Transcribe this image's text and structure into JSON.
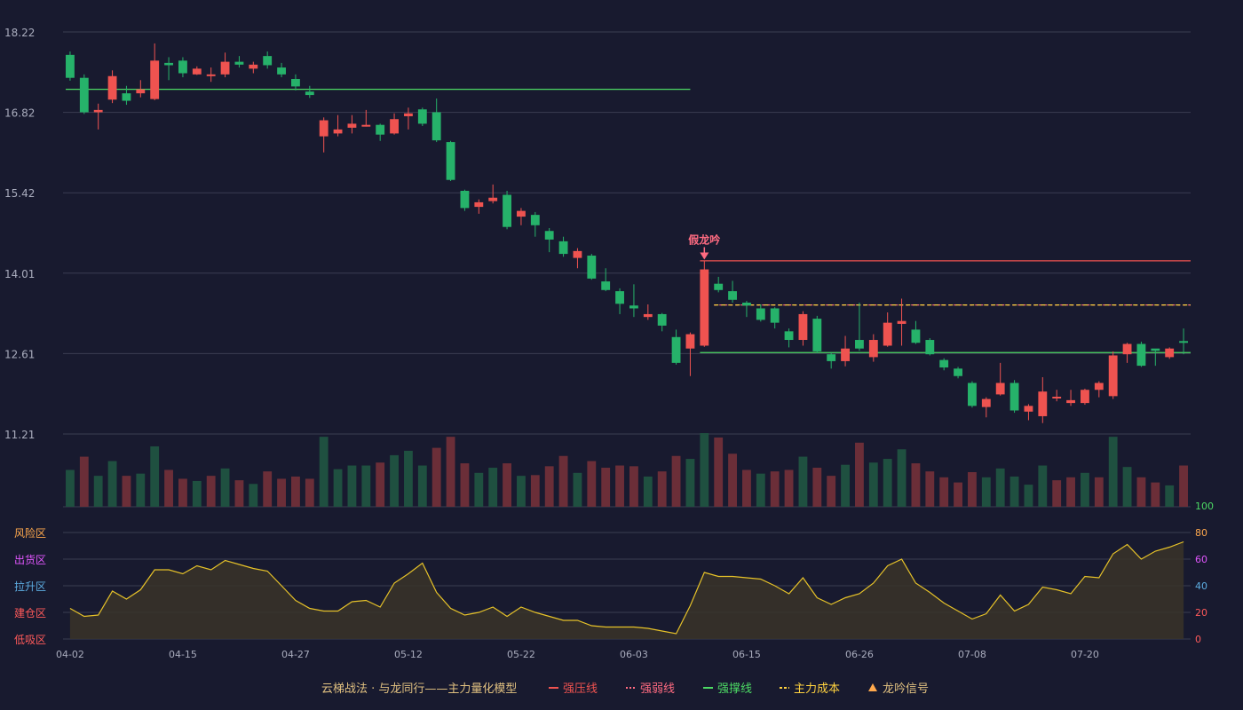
{
  "colors": {
    "background": "#181a2f",
    "grid": "#3a3d52",
    "axis_text": "#a9acbd",
    "up": "#ef5350",
    "down": "#26b26a",
    "vol_up": "#6b2e38",
    "vol_down": "#1f5040",
    "resistance": "#ef5350",
    "weak": "#ff6b81",
    "support": "#4cd964",
    "cost": "#ffd23f",
    "signal": "#ffa94d",
    "indicator_line": "#e6c229",
    "indicator_fill": "#3a3428"
  },
  "chart_data": {
    "type": "candlestick",
    "title": "",
    "price_axis": {
      "ticks": [
        "18.22",
        "16.82",
        "15.42",
        "14.01",
        "12.61",
        "11.21"
      ],
      "ylim": [
        11.21,
        18.22
      ]
    },
    "x_tick_labels": [
      {
        "date": "04-02",
        "index": 0
      },
      {
        "date": "04-15",
        "index": 8
      },
      {
        "date": "04-27",
        "index": 16
      },
      {
        "date": "05-12",
        "index": 24
      },
      {
        "date": "05-22",
        "index": 32
      },
      {
        "date": "06-03",
        "index": 40
      },
      {
        "date": "06-15",
        "index": 48
      },
      {
        "date": "06-26",
        "index": 56
      },
      {
        "date": "07-08",
        "index": 64
      },
      {
        "date": "07-20",
        "index": 72
      }
    ],
    "candles": [
      [
        17.82,
        17.42,
        17.88,
        17.37
      ],
      [
        17.42,
        16.82,
        17.48,
        16.79
      ],
      [
        16.82,
        16.86,
        16.97,
        16.52
      ],
      [
        17.04,
        17.45,
        17.55,
        16.98
      ],
      [
        17.15,
        17.02,
        17.28,
        16.95
      ],
      [
        17.15,
        17.22,
        17.38,
        17.08
      ],
      [
        17.05,
        17.72,
        18.02,
        17.03
      ],
      [
        17.68,
        17.64,
        17.78,
        17.38
      ],
      [
        17.72,
        17.5,
        17.78,
        17.43
      ],
      [
        17.48,
        17.58,
        17.62,
        17.47
      ],
      [
        17.45,
        17.48,
        17.6,
        17.35
      ],
      [
        17.48,
        17.7,
        17.86,
        17.43
      ],
      [
        17.7,
        17.65,
        17.8,
        17.6
      ],
      [
        17.58,
        17.65,
        17.7,
        17.5
      ],
      [
        17.8,
        17.64,
        17.88,
        17.58
      ],
      [
        17.6,
        17.48,
        17.68,
        17.43
      ],
      [
        17.4,
        17.27,
        17.48,
        17.2
      ],
      [
        17.18,
        17.12,
        17.28,
        17.07
      ],
      [
        16.4,
        16.68,
        16.73,
        16.12
      ],
      [
        16.45,
        16.52,
        16.77,
        16.4
      ],
      [
        16.55,
        16.62,
        16.77,
        16.45
      ],
      [
        16.57,
        16.6,
        16.86,
        16.57
      ],
      [
        16.6,
        16.43,
        16.62,
        16.32
      ],
      [
        16.45,
        16.7,
        16.8,
        16.43
      ],
      [
        16.75,
        16.8,
        16.9,
        16.52
      ],
      [
        16.87,
        16.62,
        16.9,
        16.58
      ],
      [
        16.82,
        16.33,
        17.06,
        16.3
      ],
      [
        16.3,
        15.64,
        16.32,
        15.62
      ],
      [
        15.45,
        15.15,
        15.47,
        15.1
      ],
      [
        15.17,
        15.25,
        15.3,
        15.05
      ],
      [
        15.27,
        15.33,
        15.56,
        15.23
      ],
      [
        15.38,
        14.82,
        15.45,
        14.78
      ],
      [
        15.0,
        15.1,
        15.15,
        14.85
      ],
      [
        15.03,
        14.85,
        15.08,
        14.65
      ],
      [
        14.75,
        14.6,
        14.8,
        14.38
      ],
      [
        14.57,
        14.35,
        14.65,
        14.3
      ],
      [
        14.28,
        14.4,
        14.45,
        14.1
      ],
      [
        14.32,
        13.92,
        14.35,
        13.9
      ],
      [
        13.87,
        13.72,
        14.1,
        13.7
      ],
      [
        13.7,
        13.48,
        13.75,
        13.3
      ],
      [
        13.45,
        13.4,
        13.82,
        13.25
      ],
      [
        13.25,
        13.3,
        13.47,
        13.2
      ],
      [
        13.3,
        13.1,
        13.32,
        13.0
      ],
      [
        12.9,
        12.45,
        13.03,
        12.42
      ],
      [
        12.7,
        12.95,
        12.98,
        12.22
      ],
      [
        12.75,
        14.08,
        14.22,
        12.73
      ],
      [
        13.83,
        13.72,
        13.95,
        13.68
      ],
      [
        13.7,
        13.55,
        13.88,
        13.5
      ],
      [
        13.5,
        13.45,
        13.53,
        13.25
      ],
      [
        13.4,
        13.2,
        13.47,
        13.17
      ],
      [
        13.4,
        13.15,
        13.42,
        13.05
      ],
      [
        13.0,
        12.85,
        13.05,
        12.72
      ],
      [
        12.85,
        13.3,
        13.35,
        12.75
      ],
      [
        13.22,
        12.65,
        13.27,
        12.62
      ],
      [
        12.6,
        12.48,
        12.63,
        12.35
      ],
      [
        12.48,
        12.7,
        12.92,
        12.39
      ],
      [
        12.85,
        12.7,
        13.5,
        12.66
      ],
      [
        12.55,
        12.85,
        12.95,
        12.47
      ],
      [
        12.75,
        13.15,
        13.33,
        12.73
      ],
      [
        13.13,
        13.18,
        13.57,
        12.75
      ],
      [
        13.03,
        12.8,
        13.18,
        12.78
      ],
      [
        12.85,
        12.6,
        12.88,
        12.58
      ],
      [
        12.5,
        12.37,
        12.53,
        12.32
      ],
      [
        12.35,
        12.22,
        12.38,
        12.18
      ],
      [
        12.1,
        11.7,
        12.13,
        11.67
      ],
      [
        11.68,
        11.82,
        11.85,
        11.5
      ],
      [
        11.9,
        12.1,
        12.45,
        11.88
      ],
      [
        12.1,
        11.62,
        12.15,
        11.58
      ],
      [
        11.6,
        11.7,
        11.73,
        11.45
      ],
      [
        11.52,
        11.95,
        12.2,
        11.4
      ],
      [
        11.85,
        11.86,
        11.98,
        11.78
      ],
      [
        11.75,
        11.8,
        11.98,
        11.7
      ],
      [
        11.75,
        11.98,
        12.0,
        11.72
      ],
      [
        11.98,
        12.1,
        12.13,
        11.85
      ],
      [
        11.87,
        12.58,
        12.65,
        11.82
      ],
      [
        12.6,
        12.78,
        12.8,
        12.45
      ],
      [
        12.78,
        12.4,
        12.82,
        12.38
      ],
      [
        12.7,
        12.66,
        12.69,
        12.4
      ],
      [
        12.55,
        12.7,
        12.72,
        12.52
      ],
      [
        12.83,
        12.8,
        13.05,
        12.6
      ]
    ],
    "volume": [
      [
        0.5,
        "d"
      ],
      [
        0.68,
        "u"
      ],
      [
        0.42,
        "d"
      ],
      [
        0.62,
        "d"
      ],
      [
        0.42,
        "u"
      ],
      [
        0.45,
        "d"
      ],
      [
        0.82,
        "d"
      ],
      [
        0.5,
        "u"
      ],
      [
        0.38,
        "u"
      ],
      [
        0.35,
        "d"
      ],
      [
        0.42,
        "u"
      ],
      [
        0.52,
        "d"
      ],
      [
        0.36,
        "u"
      ],
      [
        0.31,
        "d"
      ],
      [
        0.48,
        "u"
      ],
      [
        0.38,
        "u"
      ],
      [
        0.41,
        "u"
      ],
      [
        0.38,
        "u"
      ],
      [
        0.95,
        "d"
      ],
      [
        0.51,
        "d"
      ],
      [
        0.56,
        "d"
      ],
      [
        0.56,
        "d"
      ],
      [
        0.6,
        "u"
      ],
      [
        0.7,
        "d"
      ],
      [
        0.76,
        "d"
      ],
      [
        0.56,
        "d"
      ],
      [
        0.8,
        "u"
      ],
      [
        0.95,
        "u"
      ],
      [
        0.59,
        "u"
      ],
      [
        0.46,
        "d"
      ],
      [
        0.53,
        "d"
      ],
      [
        0.59,
        "u"
      ],
      [
        0.42,
        "d"
      ],
      [
        0.43,
        "u"
      ],
      [
        0.55,
        "u"
      ],
      [
        0.69,
        "u"
      ],
      [
        0.46,
        "d"
      ],
      [
        0.62,
        "u"
      ],
      [
        0.53,
        "u"
      ],
      [
        0.56,
        "u"
      ],
      [
        0.55,
        "u"
      ],
      [
        0.41,
        "d"
      ],
      [
        0.48,
        "u"
      ],
      [
        0.69,
        "u"
      ],
      [
        0.65,
        "d"
      ],
      [
        1.0,
        "d"
      ],
      [
        0.94,
        "u"
      ],
      [
        0.72,
        "u"
      ],
      [
        0.5,
        "u"
      ],
      [
        0.45,
        "d"
      ],
      [
        0.48,
        "u"
      ],
      [
        0.5,
        "u"
      ],
      [
        0.68,
        "d"
      ],
      [
        0.53,
        "u"
      ],
      [
        0.42,
        "u"
      ],
      [
        0.57,
        "d"
      ],
      [
        0.87,
        "u"
      ],
      [
        0.6,
        "d"
      ],
      [
        0.65,
        "d"
      ],
      [
        0.78,
        "d"
      ],
      [
        0.59,
        "u"
      ],
      [
        0.48,
        "u"
      ],
      [
        0.4,
        "u"
      ],
      [
        0.33,
        "u"
      ],
      [
        0.47,
        "u"
      ],
      [
        0.4,
        "d"
      ],
      [
        0.52,
        "d"
      ],
      [
        0.41,
        "d"
      ],
      [
        0.3,
        "d"
      ],
      [
        0.56,
        "d"
      ],
      [
        0.36,
        "u"
      ],
      [
        0.4,
        "u"
      ],
      [
        0.46,
        "d"
      ],
      [
        0.4,
        "u"
      ],
      [
        0.95,
        "d"
      ],
      [
        0.54,
        "d"
      ],
      [
        0.4,
        "u"
      ],
      [
        0.33,
        "u"
      ],
      [
        0.29,
        "d"
      ],
      [
        0.56,
        "u"
      ]
    ],
    "indicator": {
      "axis_ticks": [
        100,
        80,
        60,
        40,
        20,
        0
      ],
      "ylim": [
        0,
        100
      ],
      "zones": [
        "风险区",
        "出货区",
        "拉升区",
        "建仓区",
        "低吸区"
      ],
      "values": [
        23,
        17,
        18,
        36,
        30,
        37,
        52,
        52,
        49,
        55,
        52,
        59,
        56,
        53,
        51,
        40,
        29,
        23,
        21,
        21,
        28,
        29,
        24,
        42,
        49,
        57,
        35,
        23,
        18,
        20,
        24,
        17,
        24,
        20,
        17,
        14,
        14,
        10,
        9,
        9,
        9,
        8,
        6,
        4,
        25,
        50,
        47,
        47,
        46,
        45,
        40,
        34,
        46,
        31,
        26,
        31,
        34,
        42,
        55,
        60,
        42,
        35,
        27,
        21,
        15,
        19,
        33,
        21,
        26,
        39,
        37,
        34,
        47,
        46,
        64,
        71,
        60,
        66,
        69,
        73
      ]
    },
    "lines": {
      "support_1": {
        "value": 17.22,
        "start": 0,
        "end": 44
      },
      "resistance": {
        "value": 14.23,
        "start": 45,
        "end": 81
      },
      "weak": {
        "value": 13.46,
        "start": 46,
        "end": 81
      },
      "cost": {
        "value": 13.46,
        "start": 46,
        "end": 81
      },
      "support_2": {
        "value": 12.63,
        "start": 45,
        "end": 81
      }
    },
    "annotation": {
      "text": "假龙吟",
      "index": 45
    }
  },
  "legend": {
    "title": "云梯战法 · 与龙同行——主力量化模型",
    "items": [
      "强压线",
      "强弱线",
      "强撑线",
      "主力成本",
      "龙吟信号"
    ]
  }
}
